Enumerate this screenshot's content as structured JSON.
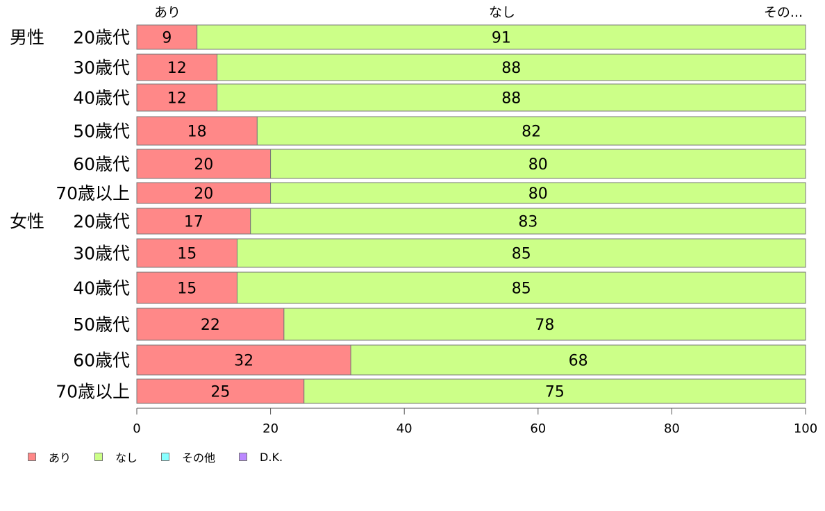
{
  "chart_data": {
    "type": "bar",
    "orientation": "horizontal",
    "stacked": true,
    "groups": [
      {
        "label": "男性"
      },
      {
        "label": "女性"
      }
    ],
    "categories": [
      {
        "group": "男性",
        "label": "20歳代"
      },
      {
        "group": "",
        "label": "30歳代"
      },
      {
        "group": "",
        "label": "40歳代"
      },
      {
        "group": "",
        "label": "50歳代"
      },
      {
        "group": "",
        "label": "60歳代"
      },
      {
        "group": "",
        "label": "70歳以上"
      },
      {
        "group": "女性",
        "label": "20歳代"
      },
      {
        "group": "",
        "label": "30歳代"
      },
      {
        "group": "",
        "label": "40歳代"
      },
      {
        "group": "",
        "label": "50歳代"
      },
      {
        "group": "",
        "label": "60歳代"
      },
      {
        "group": "",
        "label": "70歳以上"
      }
    ],
    "series": [
      {
        "name": "あり",
        "color": "#ff8888",
        "values": [
          9,
          12,
          12,
          18,
          20,
          20,
          17,
          15,
          15,
          22,
          32,
          25
        ]
      },
      {
        "name": "なし",
        "color": "#ccff88",
        "values": [
          91,
          88,
          88,
          82,
          80,
          80,
          83,
          85,
          85,
          78,
          68,
          75
        ]
      },
      {
        "name": "その他",
        "color": "#88ffff",
        "values": [
          0,
          0,
          0,
          0,
          0,
          0,
          0,
          0,
          0,
          0,
          0,
          0
        ]
      },
      {
        "name": "D.K.",
        "color": "#bb88ff",
        "values": [
          0,
          0,
          0,
          0,
          0,
          0,
          0,
          0,
          0,
          0,
          0,
          0
        ]
      }
    ],
    "top_labels": [
      "あり",
      "なし",
      "その..."
    ],
    "xlim": [
      0,
      100
    ],
    "xticks": [
      "0",
      "20",
      "40",
      "60",
      "80",
      "100"
    ],
    "grid": false,
    "legend_position": "bottom-left"
  }
}
